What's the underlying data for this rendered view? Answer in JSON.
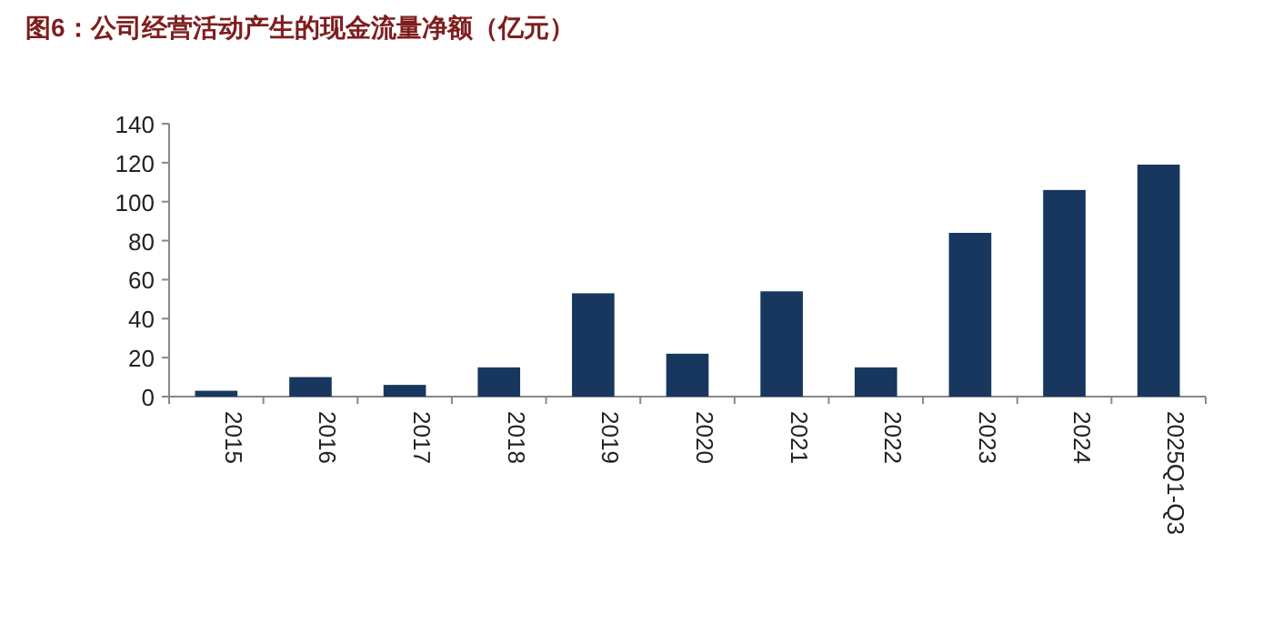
{
  "chart_data": {
    "type": "bar",
    "title": "图6：公司经营活动产生的现金流量净额（亿元）",
    "categories": [
      "2015",
      "2016",
      "2017",
      "2018",
      "2019",
      "2020",
      "2021",
      "2022",
      "2023",
      "2024",
      "2025Q1-Q3"
    ],
    "values": [
      3,
      10,
      6,
      15,
      53,
      22,
      54,
      15,
      84,
      106,
      119
    ],
    "color": "#17375e",
    "ylim": [
      0,
      140
    ],
    "yticks": [
      0,
      20,
      40,
      60,
      80,
      100,
      120,
      140
    ]
  }
}
